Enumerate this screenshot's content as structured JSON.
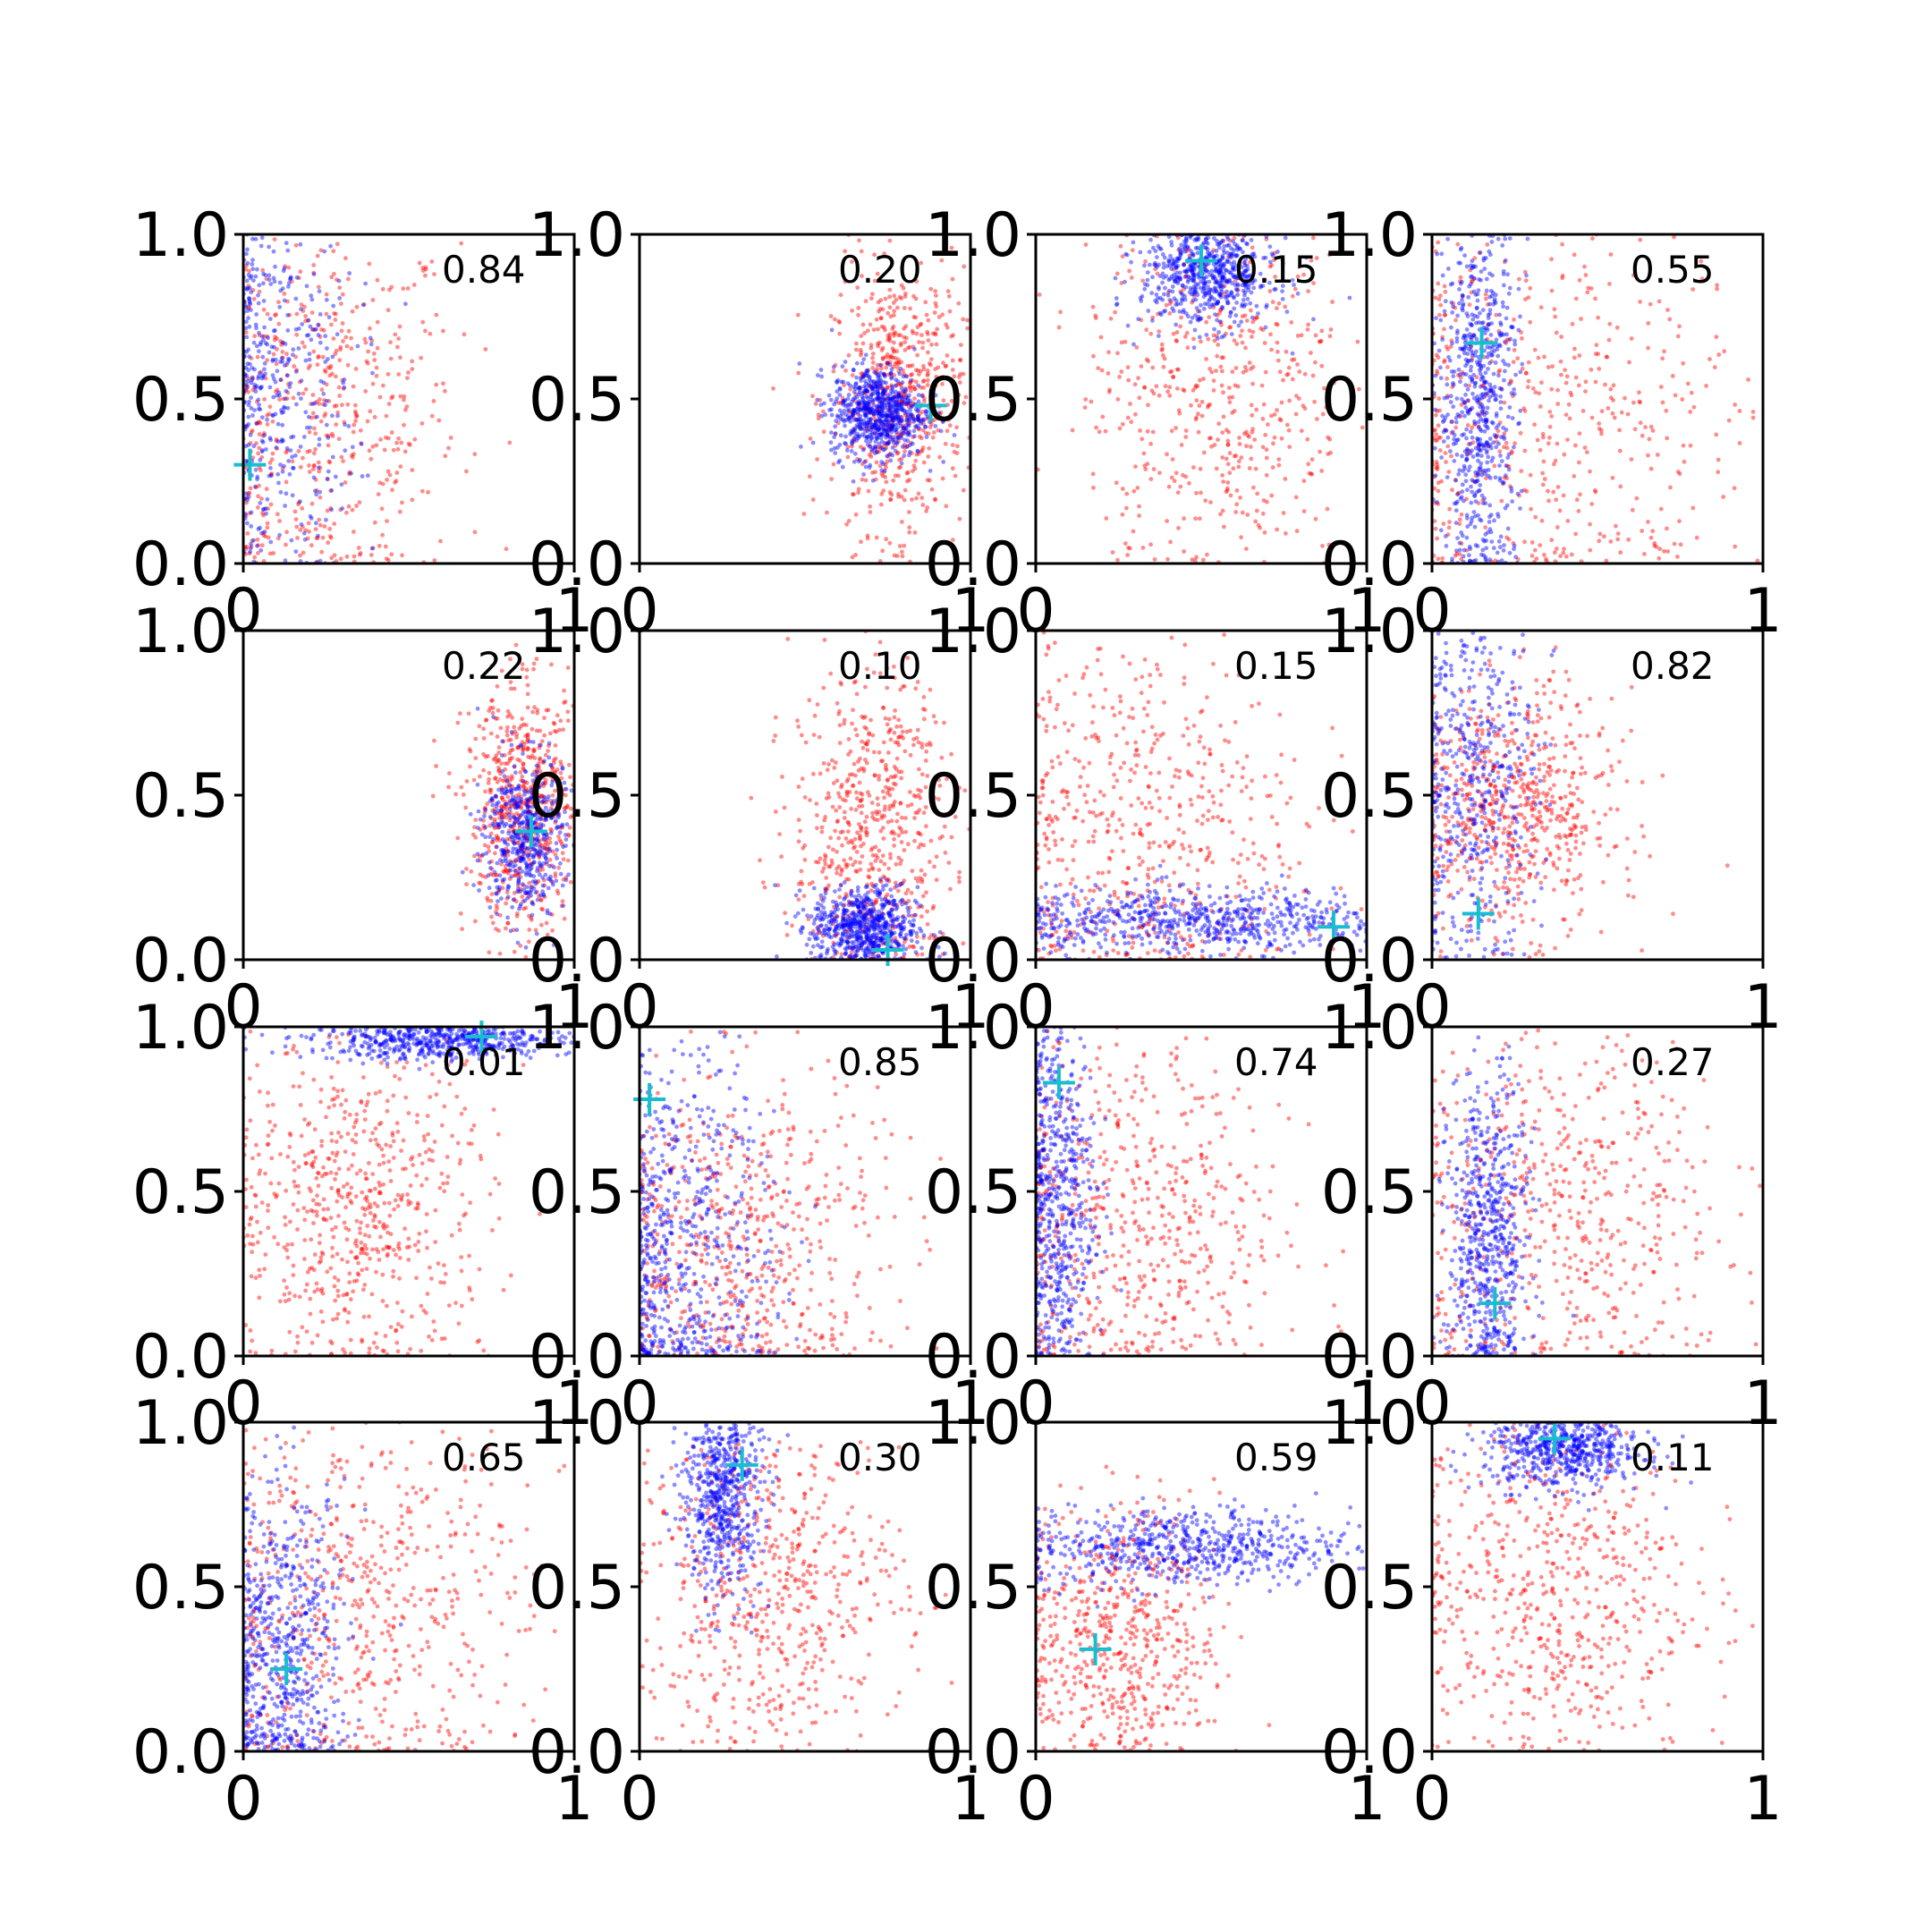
{
  "chart_data": {
    "type": "scatter",
    "layout": "4x4 grid of small scatter panels",
    "series": [
      {
        "name": "",
        "color": "#0000ff",
        "marker": "dot"
      },
      {
        "name": "",
        "color": "#ff0000",
        "marker": "dot"
      },
      {
        "name": "",
        "color": "#17becf",
        "marker": "plus"
      }
    ],
    "shared_axes": {
      "xlim": [
        0,
        1
      ],
      "ylim": [
        0,
        1
      ],
      "xtick_labels": [
        "0",
        "1"
      ],
      "ytick_labels": [
        "0.0",
        "0.5",
        "1.0"
      ],
      "grid": false
    },
    "panels": [
      {
        "annotation": "0.84",
        "marker": [
          0.02,
          0.3
        ],
        "blue": {
          "cx": 0.08,
          "cy": 0.55,
          "sx": 0.13,
          "sy": 0.3,
          "n": 420
        },
        "red": {
          "cx": 0.25,
          "cy": 0.45,
          "sx": 0.2,
          "sy": 0.3,
          "n": 520
        }
      },
      {
        "annotation": "0.20",
        "marker": [
          0.88,
          0.48
        ],
        "blue": {
          "cx": 0.72,
          "cy": 0.46,
          "sx": 0.07,
          "sy": 0.07,
          "n": 700
        },
        "red": {
          "cx": 0.78,
          "cy": 0.5,
          "sx": 0.1,
          "sy": 0.2,
          "n": 620
        }
      },
      {
        "annotation": "0.15",
        "marker": [
          0.5,
          0.92
        ],
        "blue": {
          "cx": 0.52,
          "cy": 0.88,
          "sx": 0.1,
          "sy": 0.08,
          "n": 650
        },
        "red": {
          "cx": 0.55,
          "cy": 0.55,
          "sx": 0.2,
          "sy": 0.3,
          "n": 540
        }
      },
      {
        "annotation": "0.55",
        "marker": [
          0.15,
          0.67
        ],
        "blue": {
          "cx": 0.14,
          "cy": 0.5,
          "sx": 0.06,
          "sy": 0.28,
          "n": 650
        },
        "red": {
          "cx": 0.35,
          "cy": 0.45,
          "sx": 0.3,
          "sy": 0.3,
          "n": 520
        }
      },
      {
        "annotation": "0.22",
        "marker": [
          0.87,
          0.39
        ],
        "blue": {
          "cx": 0.85,
          "cy": 0.38,
          "sx": 0.06,
          "sy": 0.12,
          "n": 500
        },
        "red": {
          "cx": 0.85,
          "cy": 0.45,
          "sx": 0.09,
          "sy": 0.18,
          "n": 650
        }
      },
      {
        "annotation": "0.10",
        "marker": [
          0.75,
          0.03
        ],
        "blue": {
          "cx": 0.68,
          "cy": 0.1,
          "sx": 0.08,
          "sy": 0.06,
          "n": 650
        },
        "red": {
          "cx": 0.7,
          "cy": 0.4,
          "sx": 0.12,
          "sy": 0.25,
          "n": 620
        }
      },
      {
        "annotation": "0.15",
        "marker": [
          0.9,
          0.1
        ],
        "blue": {
          "cx": 0.5,
          "cy": 0.12,
          "sx": 0.3,
          "sy": 0.05,
          "n": 650
        },
        "red": {
          "cx": 0.3,
          "cy": 0.4,
          "sx": 0.25,
          "sy": 0.3,
          "n": 560
        }
      },
      {
        "annotation": "0.82",
        "marker": [
          0.14,
          0.14
        ],
        "blue": {
          "cx": 0.12,
          "cy": 0.55,
          "sx": 0.1,
          "sy": 0.28,
          "n": 500
        },
        "red": {
          "cx": 0.25,
          "cy": 0.45,
          "sx": 0.15,
          "sy": 0.18,
          "n": 650
        }
      },
      {
        "annotation": "0.01",
        "marker": [
          0.72,
          0.97
        ],
        "blue": {
          "cx": 0.6,
          "cy": 0.96,
          "sx": 0.2,
          "sy": 0.03,
          "n": 600
        },
        "red": {
          "cx": 0.35,
          "cy": 0.45,
          "sx": 0.2,
          "sy": 0.25,
          "n": 640
        }
      },
      {
        "annotation": "0.85",
        "marker": [
          0.03,
          0.78
        ],
        "blue": {
          "cx": 0.12,
          "cy": 0.35,
          "sx": 0.15,
          "sy": 0.3,
          "n": 600
        },
        "red": {
          "cx": 0.3,
          "cy": 0.35,
          "sx": 0.22,
          "sy": 0.28,
          "n": 580
        }
      },
      {
        "annotation": "0.74",
        "marker": [
          0.07,
          0.83
        ],
        "blue": {
          "cx": 0.06,
          "cy": 0.5,
          "sx": 0.06,
          "sy": 0.3,
          "n": 620
        },
        "red": {
          "cx": 0.3,
          "cy": 0.4,
          "sx": 0.22,
          "sy": 0.3,
          "n": 560
        }
      },
      {
        "annotation": "0.27",
        "marker": [
          0.19,
          0.16
        ],
        "blue": {
          "cx": 0.17,
          "cy": 0.35,
          "sx": 0.06,
          "sy": 0.25,
          "n": 620
        },
        "red": {
          "cx": 0.4,
          "cy": 0.45,
          "sx": 0.25,
          "sy": 0.3,
          "n": 560
        }
      },
      {
        "annotation": "0.65",
        "marker": [
          0.13,
          0.25
        ],
        "blue": {
          "cx": 0.12,
          "cy": 0.3,
          "sx": 0.1,
          "sy": 0.25,
          "n": 600
        },
        "red": {
          "cx": 0.35,
          "cy": 0.45,
          "sx": 0.25,
          "sy": 0.3,
          "n": 580
        }
      },
      {
        "annotation": "0.30",
        "marker": [
          0.31,
          0.87
        ],
        "blue": {
          "cx": 0.25,
          "cy": 0.78,
          "sx": 0.06,
          "sy": 0.15,
          "n": 620
        },
        "red": {
          "cx": 0.4,
          "cy": 0.5,
          "sx": 0.2,
          "sy": 0.25,
          "n": 580
        }
      },
      {
        "annotation": "0.59",
        "marker": [
          0.18,
          0.31
        ],
        "blue": {
          "cx": 0.45,
          "cy": 0.62,
          "sx": 0.25,
          "sy": 0.06,
          "n": 620
        },
        "red": {
          "cx": 0.25,
          "cy": 0.35,
          "sx": 0.15,
          "sy": 0.2,
          "n": 580
        }
      },
      {
        "annotation": "0.11",
        "marker": [
          0.37,
          0.95
        ],
        "blue": {
          "cx": 0.4,
          "cy": 0.92,
          "sx": 0.12,
          "sy": 0.06,
          "n": 620
        },
        "red": {
          "cx": 0.35,
          "cy": 0.5,
          "sx": 0.22,
          "sy": 0.28,
          "n": 600
        }
      }
    ]
  }
}
